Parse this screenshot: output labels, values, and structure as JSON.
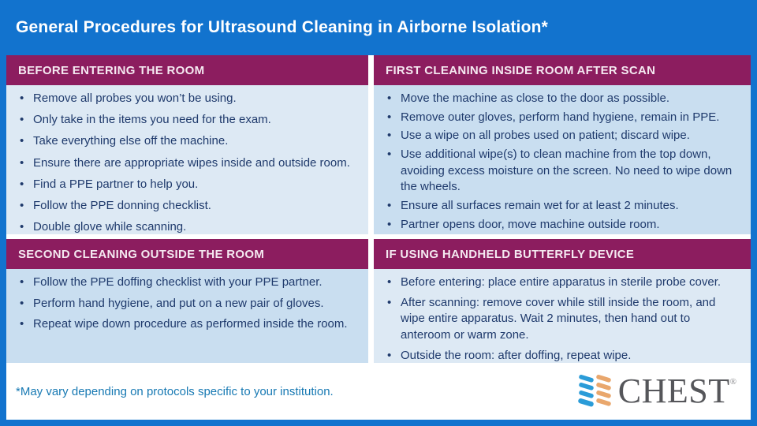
{
  "title": "General Procedures for Ultrasound Cleaning in Airborne Isolation*",
  "panels": [
    {
      "id": "before-entering",
      "header": "BEFORE ENTERING THE ROOM",
      "bullets": [
        "Remove all probes you won’t be using.",
        "Only take in the items you need for the exam.",
        "Take everything else off the machine.",
        "Ensure there are appropriate wipes inside and outside room.",
        "Find a PPE partner to help you.",
        "Follow the PPE donning checklist.",
        "Double glove while scanning."
      ]
    },
    {
      "id": "first-cleaning-inside",
      "header": "FIRST CLEANING INSIDE ROOM AFTER SCAN",
      "bullets": [
        "Move the machine as close to the door as possible.",
        "Remove outer gloves, perform hand hygiene, remain in PPE.",
        "Use a wipe on all probes used on patient; discard wipe.",
        "Use additional wipe(s) to clean machine from the top down, avoiding excess moisture on the screen. No need to wipe down the wheels.",
        "Ensure all surfaces remain wet for at least 2 minutes.",
        "Partner opens door, move machine outside room."
      ]
    },
    {
      "id": "second-cleaning-outside",
      "header": "SECOND CLEANING OUTSIDE THE ROOM",
      "bullets": [
        "Follow the PPE doffing checklist with your PPE partner.",
        "Perform hand hygiene, and put on a new pair of gloves.",
        "Repeat wipe down procedure as performed inside the room."
      ]
    },
    {
      "id": "handheld-butterfly",
      "header": "IF USING HANDHELD BUTTERFLY DEVICE",
      "bullets": [
        "Before entering: place entire apparatus in sterile probe cover.",
        "After scanning: remove cover while still inside the room, and wipe entire apparatus. Wait 2 minutes, then hand out to anteroom or warm zone.",
        "Outside the room: after doffing, repeat wipe."
      ]
    }
  ],
  "footnote": "*May vary depending on protocols specific to your institution.",
  "logo": {
    "wordmark": "CHEST",
    "registered": "®",
    "icon": "chest-stripes-icon"
  },
  "colors": {
    "header_blue": "#1273ce",
    "section_purple": "#8c1d5f",
    "panel_light": "#dde9f4",
    "panel_medium": "#c9def0",
    "body_text": "#1f3a6c",
    "footnote_text": "#1779b3",
    "logo_gray": "#55565a",
    "logo_blue": "#2b9cd8",
    "logo_orange": "#e9a76d"
  }
}
